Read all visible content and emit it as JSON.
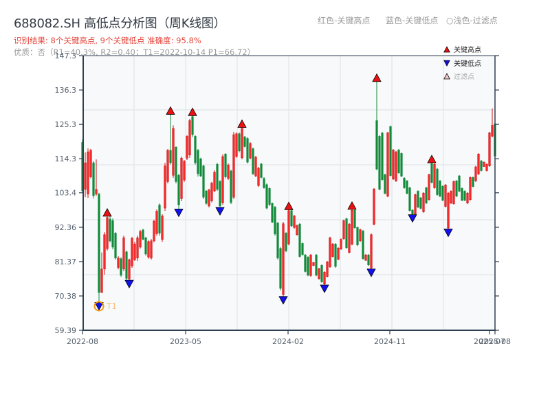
{
  "header": {
    "title": "688082.SH 高低点分析图（周K线图）",
    "summary": "识别结果: 8个关键高点, 9个关键低点  准确度: 95.8%",
    "quality": "优质：否（R1=40.3%, R2=0.40；T1=2022-10-14 P1=66.72）"
  },
  "top_legend": {
    "high": "红色-关键高点",
    "low": "蓝色-关键低点",
    "filtered": "○浅色-过滤点"
  },
  "chart_data": {
    "type": "candlestick",
    "title": "688082.SH 高低点分析图（周K线图）",
    "subtitle": "识别结果: 8个关键高点, 9个关键低点  准确度: 95.8%",
    "xlabel": "",
    "ylabel": "",
    "ylim": [
      59.39,
      147.3
    ],
    "yticks": [
      59.39,
      70.38,
      81.37,
      92.36,
      103.4,
      114.3,
      125.3,
      136.3,
      147.3
    ],
    "ytick_labels": [
      "59.39",
      "70.38",
      "81.37",
      "92.36",
      "103.4",
      "114.3",
      "125.3",
      "136.3",
      "147.3"
    ],
    "xticks": [
      {
        "label": "2022-08",
        "index": 0
      },
      {
        "label": "2023-05",
        "index": 37.5
      },
      {
        "label": "2024-02",
        "index": 74.75
      },
      {
        "label": "2024-11",
        "index": 111.75
      },
      {
        "label": "2025-07",
        "index": 148
      },
      {
        "label": "2025-08",
        "index": 150
      }
    ],
    "grid": true,
    "legend_position": "upper right",
    "legend": [
      {
        "label": "关键高点",
        "marker": "triangle-up",
        "color": "#e81010",
        "text_color": "#222222"
      },
      {
        "label": "关键低点",
        "marker": "triangle-down",
        "color": "#1010e0",
        "text_color": "#222222"
      },
      {
        "label": "过滤点",
        "marker": "triangle-up",
        "color": "#f8c8c8",
        "text_color": "#aaaaaa"
      }
    ],
    "colors": {
      "up": "#d40f0f",
      "up_fill": "#f52a2a",
      "down": "#138a3a",
      "high_marker": "#ee1111",
      "low_marker": "#1111ee",
      "annotation": "#f39c12",
      "annotation_text": "#f7c07a"
    },
    "candle_fields": [
      "open",
      "high",
      "low",
      "close"
    ],
    "candles": [
      [
        119.5,
        120.5,
        103.5,
        104.0
      ],
      [
        104.5,
        116.3,
        102.0,
        113.0
      ],
      [
        103.0,
        117.6,
        101.8,
        116.5
      ],
      [
        108.5,
        117.4,
        108.0,
        117.0
      ],
      [
        113.0,
        113.5,
        101.6,
        102.5
      ],
      [
        103.0,
        114.1,
        102.5,
        104.5
      ],
      [
        103.0,
        103.4,
        68.3,
        71.5
      ],
      [
        71.5,
        84.3,
        71.3,
        79.0
      ],
      [
        79.0,
        90.8,
        77.2,
        90.0
      ],
      [
        85.5,
        95.9,
        84.9,
        95.5
      ],
      [
        95.0,
        95.9,
        87.5,
        88.0
      ],
      [
        94.5,
        95.2,
        85.3,
        86.0
      ],
      [
        90.5,
        90.8,
        82.0,
        82.5
      ],
      [
        79.5,
        83.1,
        78.9,
        82.5
      ],
      [
        82.3,
        82.7,
        76.5,
        77.0
      ],
      [
        79.0,
        89.7,
        78.3,
        89.0
      ],
      [
        84.5,
        84.9,
        75.4,
        76.0
      ],
      [
        75.8,
        82.3,
        75.4,
        82.0
      ],
      [
        80.0,
        89.3,
        79.4,
        88.8
      ],
      [
        82.0,
        87.7,
        81.6,
        87.0
      ],
      [
        82.5,
        89.7,
        81.6,
        89.0
      ],
      [
        86.0,
        91.5,
        85.5,
        91.0
      ],
      [
        91.5,
        91.9,
        88.2,
        88.5
      ],
      [
        89.0,
        89.3,
        83.3,
        83.8
      ],
      [
        82.8,
        88.2,
        82.3,
        87.8
      ],
      [
        82.5,
        88.6,
        82.0,
        88.0
      ],
      [
        88.0,
        94.8,
        87.5,
        94.3
      ],
      [
        90.3,
        98.1,
        89.7,
        97.5
      ],
      [
        99.5,
        100.0,
        89.7,
        90.5
      ],
      [
        88.5,
        96.5,
        87.7,
        96.0
      ],
      [
        98.5,
        113.0,
        97.6,
        112.0
      ],
      [
        107.0,
        117.4,
        106.4,
        117.0
      ],
      [
        117.0,
        128.5,
        112.4,
        113.0
      ],
      [
        109.0,
        125.0,
        108.2,
        124.0
      ],
      [
        118.0,
        118.3,
        106.4,
        107.0
      ],
      [
        109.0,
        109.5,
        98.2,
        99.5
      ],
      [
        101.5,
        115.0,
        100.7,
        114.5
      ],
      [
        107.5,
        113.9,
        106.9,
        113.5
      ],
      [
        114.5,
        121.8,
        113.9,
        121.5
      ],
      [
        115.5,
        127.1,
        114.6,
        126.5
      ],
      [
        127.8,
        128.1,
        121.2,
        122.0
      ],
      [
        121.5,
        121.8,
        112.4,
        113.0
      ],
      [
        117.0,
        117.4,
        108.6,
        109.5
      ],
      [
        114.3,
        114.6,
        108.4,
        108.8
      ],
      [
        112.0,
        112.4,
        101.4,
        102.0
      ],
      [
        104.0,
        104.2,
        99.6,
        100.0
      ],
      [
        99.2,
        104.7,
        98.7,
        104.3
      ],
      [
        100.8,
        106.9,
        100.3,
        106.5
      ],
      [
        104.0,
        110.6,
        103.6,
        110.0
      ],
      [
        112.5,
        113.0,
        104.0,
        104.5
      ],
      [
        107.0,
        107.5,
        98.7,
        99.2
      ],
      [
        100.2,
        115.7,
        99.6,
        115.0
      ],
      [
        115.8,
        116.1,
        108.0,
        108.5
      ],
      [
        108.0,
        112.8,
        107.5,
        112.3
      ],
      [
        110.4,
        110.8,
        99.8,
        100.3
      ],
      [
        102.0,
        122.9,
        101.4,
        122.0
      ],
      [
        115.0,
        122.7,
        114.6,
        122.3
      ],
      [
        122.3,
        122.7,
        116.3,
        116.8
      ],
      [
        114.6,
        124.3,
        114.1,
        124.0
      ],
      [
        121.3,
        121.6,
        117.9,
        118.2
      ],
      [
        120.8,
        121.2,
        112.8,
        113.2
      ],
      [
        114.5,
        119.6,
        114.1,
        119.2
      ],
      [
        117.5,
        117.9,
        109.1,
        109.5
      ],
      [
        108.8,
        115.2,
        108.4,
        114.8
      ],
      [
        105.7,
        111.7,
        105.3,
        111.3
      ],
      [
        112.6,
        113.0,
        108.0,
        108.3
      ],
      [
        108.0,
        108.4,
        104.7,
        105.0
      ],
      [
        106.0,
        106.4,
        98.1,
        98.5
      ],
      [
        104.8,
        105.1,
        99.2,
        99.6
      ],
      [
        100.0,
        100.3,
        93.7,
        94.0
      ],
      [
        98.8,
        99.2,
        89.7,
        90.2
      ],
      [
        93.7,
        94.1,
        82.0,
        82.5
      ],
      [
        85.6,
        86.0,
        72.1,
        72.8
      ],
      [
        70.8,
        94.1,
        70.2,
        93.5
      ],
      [
        90.5,
        90.8,
        84.4,
        84.8
      ],
      [
        87.0,
        98.0,
        86.6,
        97.7
      ],
      [
        97.7,
        98.1,
        92.4,
        92.8
      ],
      [
        92.3,
        96.3,
        91.9,
        96.0
      ],
      [
        90.0,
        93.2,
        89.7,
        92.9
      ],
      [
        93.4,
        93.7,
        82.7,
        83.0
      ],
      [
        87.2,
        87.5,
        83.3,
        83.6
      ],
      [
        83.5,
        83.8,
        77.9,
        78.2
      ],
      [
        82.8,
        83.1,
        76.7,
        77.0
      ],
      [
        76.9,
        83.8,
        76.5,
        83.5
      ],
      [
        80.1,
        81.2,
        80.0,
        81.1
      ],
      [
        83.5,
        83.8,
        76.7,
        77.0
      ],
      [
        75.9,
        79.4,
        75.6,
        79.1
      ],
      [
        80.2,
        80.5,
        74.6,
        74.9
      ],
      [
        74.2,
        78.3,
        73.9,
        78.0
      ],
      [
        76.6,
        81.6,
        76.3,
        81.3
      ],
      [
        79.7,
        89.3,
        79.4,
        89.0
      ],
      [
        83.0,
        87.3,
        82.7,
        87.0
      ],
      [
        87.0,
        87.3,
        79.4,
        79.8
      ],
      [
        82.1,
        86.0,
        81.8,
        85.7
      ],
      [
        85.4,
        88.8,
        85.1,
        88.5
      ],
      [
        88.7,
        94.8,
        88.4,
        94.5
      ],
      [
        95.1,
        95.4,
        85.5,
        85.8
      ],
      [
        84.3,
        93.7,
        84.0,
        93.4
      ],
      [
        86.9,
        98.1,
        86.6,
        97.8
      ],
      [
        97.8,
        98.1,
        91.9,
        92.2
      ],
      [
        92.3,
        92.6,
        86.4,
        86.7
      ],
      [
        88.0,
        91.9,
        87.7,
        91.6
      ],
      [
        91.2,
        91.5,
        82.0,
        82.3
      ],
      [
        81.8,
        83.8,
        81.6,
        83.5
      ],
      [
        83.5,
        83.8,
        80.0,
        80.3
      ],
      [
        79.3,
        90.4,
        79.0,
        90.0
      ],
      [
        93.3,
        104.9,
        93.0,
        104.6
      ],
      [
        126.5,
        139.0,
        110.6,
        111.0
      ],
      [
        121.5,
        121.8,
        104.2,
        104.5
      ],
      [
        122.5,
        122.9,
        107.3,
        107.6
      ],
      [
        109.2,
        109.5,
        102.9,
        103.2
      ],
      [
        102.3,
        122.9,
        102.0,
        122.6
      ],
      [
        124.6,
        124.9,
        108.6,
        108.9
      ],
      [
        107.8,
        117.4,
        107.5,
        117.1
      ],
      [
        107.2,
        116.8,
        106.9,
        116.5
      ],
      [
        117.1,
        117.4,
        109.5,
        109.8
      ],
      [
        116.0,
        116.3,
        108.4,
        108.7
      ],
      [
        108.1,
        108.4,
        104.7,
        105.0
      ],
      [
        107.2,
        107.5,
        102.9,
        103.2
      ],
      [
        105.0,
        105.3,
        97.4,
        97.7
      ],
      [
        97.9,
        98.1,
        96.4,
        96.6
      ],
      [
        96.6,
        103.1,
        96.3,
        102.8
      ],
      [
        103.9,
        104.2,
        98.5,
        98.8
      ],
      [
        101.8,
        102.0,
        98.1,
        98.4
      ],
      [
        97.3,
        103.6,
        97.0,
        103.3
      ],
      [
        105.0,
        105.3,
        99.8,
        100.1
      ],
      [
        101.2,
        109.5,
        100.9,
        109.2
      ],
      [
        112.7,
        113.0,
        106.4,
        106.7
      ],
      [
        105.0,
        112.8,
        104.7,
        112.5
      ],
      [
        111.0,
        111.3,
        102.5,
        102.8
      ],
      [
        107.2,
        107.5,
        102.0,
        102.3
      ],
      [
        105.5,
        105.8,
        100.7,
        101.0
      ],
      [
        99.0,
        106.2,
        98.7,
        105.9
      ],
      [
        92.1,
        103.6,
        91.8,
        103.3
      ],
      [
        100.1,
        104.2,
        99.8,
        103.9
      ],
      [
        99.9,
        107.3,
        99.6,
        107.0
      ],
      [
        107.2,
        107.5,
        102.0,
        102.3
      ],
      [
        108.8,
        109.1,
        103.6,
        103.9
      ],
      [
        104.8,
        105.1,
        100.7,
        101.0
      ],
      [
        103.9,
        104.2,
        100.7,
        101.0
      ],
      [
        100.1,
        103.6,
        99.8,
        103.3
      ],
      [
        101.2,
        108.6,
        100.9,
        108.3
      ],
      [
        108.3,
        108.6,
        105.1,
        105.4
      ],
      [
        107.2,
        112.0,
        106.9,
        111.7
      ],
      [
        109.4,
        116.1,
        109.1,
        115.8
      ],
      [
        113.6,
        113.9,
        110.2,
        110.5
      ],
      [
        111.8,
        113.4,
        111.7,
        113.2
      ],
      [
        110.5,
        112.8,
        110.2,
        112.5
      ],
      [
        112.0,
        122.9,
        111.7,
        122.6
      ],
      [
        121.5,
        130.4,
        121.2,
        125.0
      ],
      [
        125.5,
        126.0,
        114.9,
        115.2
      ]
    ],
    "key_highs": [
      {
        "index": 9,
        "price": 95.9
      },
      {
        "index": 32,
        "price": 128.5
      },
      {
        "index": 40,
        "price": 128.1
      },
      {
        "index": 58,
        "price": 124.3
      },
      {
        "index": 75,
        "price": 98.0
      },
      {
        "index": 98,
        "price": 98.1
      },
      {
        "index": 107,
        "price": 139.0
      },
      {
        "index": 127,
        "price": 113.0
      }
    ],
    "key_lows": [
      {
        "index": 6,
        "price": 68.3
      },
      {
        "index": 17,
        "price": 75.4
      },
      {
        "index": 35,
        "price": 98.2
      },
      {
        "index": 50,
        "price": 98.7
      },
      {
        "index": 73,
        "price": 70.2
      },
      {
        "index": 88,
        "price": 73.9
      },
      {
        "index": 105,
        "price": 79.0
      },
      {
        "index": 120,
        "price": 96.4
      },
      {
        "index": 133,
        "price": 91.8
      }
    ],
    "annotation": {
      "label": "T1",
      "index": 6,
      "date": "2022-10-14",
      "price": 66.72
    }
  }
}
